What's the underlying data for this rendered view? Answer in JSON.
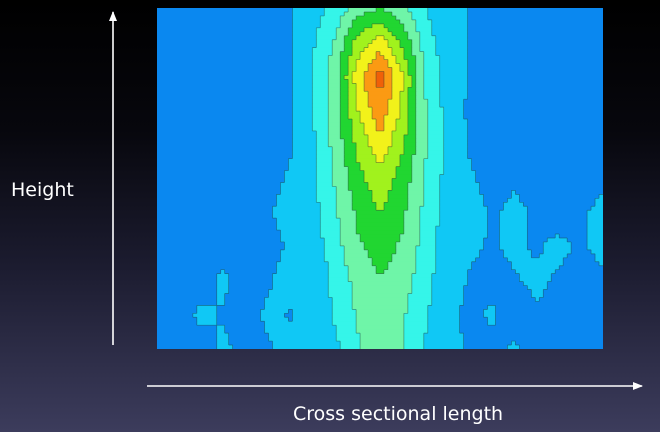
{
  "chart_data": {
    "type": "heatmap",
    "title": "",
    "xlabel": "Cross sectional length",
    "ylabel": "Height",
    "legend": "none",
    "grid": false,
    "contour_lines": true,
    "colormap": [
      "#0a88f0",
      "#10c8f5",
      "#35f5e9",
      "#6ff5a8",
      "#21d631",
      "#a1f21d",
      "#f2f21a",
      "#fb9a13",
      "#f06008"
    ],
    "x": [
      0,
      0.05,
      0.1,
      0.15,
      0.2,
      0.25,
      0.3,
      0.35,
      0.4,
      0.45,
      0.5,
      0.55,
      0.6,
      0.65,
      0.7,
      0.75,
      0.8,
      0.85,
      0.9,
      0.95,
      1
    ],
    "y": [
      0,
      0.1,
      0.2,
      0.3,
      0.4,
      0.5,
      0.6,
      0.7,
      0.8,
      0.9,
      1
    ],
    "z": [
      [
        1.8,
        1.8,
        1.7,
        1.9,
        1.7,
        1.8,
        2.0,
        1.9,
        2.5,
        3.4,
        4.0,
        3.5,
        2.6,
        2.0,
        1.8,
        1.7,
        1.9,
        1.7,
        1.5,
        1.5,
        1.5
      ],
      [
        1.7,
        1.7,
        1.9,
        1.8,
        1.7,
        1.9,
        1.8,
        2.1,
        2.8,
        3.6,
        4.1,
        3.6,
        2.8,
        2.0,
        1.7,
        1.9,
        1.6,
        1.8,
        1.7,
        1.6,
        1.6
      ],
      [
        1.5,
        1.6,
        1.7,
        1.9,
        1.6,
        1.8,
        2.0,
        2.0,
        2.9,
        3.8,
        4.3,
        3.9,
        3.0,
        2.1,
        1.8,
        1.7,
        1.8,
        1.9,
        1.8,
        1.7,
        1.8
      ],
      [
        1.6,
        1.6,
        1.8,
        1.7,
        1.6,
        1.7,
        1.9,
        2.2,
        3.2,
        4.2,
        4.7,
        4.2,
        3.2,
        2.2,
        1.9,
        1.8,
        1.9,
        1.8,
        1.9,
        1.8,
        1.9
      ],
      [
        1.6,
        1.7,
        1.8,
        1.8,
        1.7,
        1.8,
        2.0,
        2.4,
        3.4,
        4.5,
        5.2,
        4.5,
        3.3,
        2.3,
        2.0,
        1.8,
        1.9,
        1.8,
        1.7,
        1.8,
        1.9
      ],
      [
        1.5,
        1.5,
        1.7,
        1.6,
        1.5,
        1.7,
        1.9,
        2.5,
        3.6,
        4.9,
        5.7,
        4.8,
        3.5,
        2.4,
        1.9,
        1.7,
        1.8,
        1.7,
        1.5,
        1.7,
        1.8
      ],
      [
        1.3,
        1.4,
        1.4,
        1.5,
        1.4,
        1.6,
        1.8,
        2.6,
        3.8,
        5.4,
        6.6,
        5.3,
        3.6,
        2.5,
        1.8,
        1.6,
        1.6,
        1.5,
        1.4,
        1.5,
        1.6
      ],
      [
        1.3,
        1.2,
        1.6,
        1.3,
        1.4,
        1.5,
        1.7,
        2.6,
        3.9,
        6.0,
        7.4,
        5.8,
        3.6,
        2.4,
        1.7,
        1.5,
        1.6,
        1.3,
        1.4,
        1.4,
        1.5
      ],
      [
        1.2,
        1.3,
        1.4,
        1.4,
        1.5,
        1.5,
        1.8,
        2.7,
        4.0,
        6.5,
        8.0,
        6.1,
        3.5,
        2.3,
        1.8,
        1.6,
        1.5,
        1.4,
        1.5,
        1.5,
        1.4
      ],
      [
        1.4,
        1.3,
        1.5,
        1.5,
        1.6,
        1.6,
        1.8,
        2.6,
        3.6,
        5.5,
        6.4,
        5.0,
        3.1,
        2.2,
        1.8,
        1.7,
        1.6,
        1.5,
        1.6,
        1.6,
        1.5
      ],
      [
        1.5,
        1.5,
        1.6,
        1.6,
        1.6,
        1.7,
        1.8,
        2.3,
        3.0,
        3.9,
        4.3,
        3.8,
        2.7,
        2.1,
        1.8,
        1.7,
        1.6,
        1.6,
        1.6,
        1.6,
        1.6
      ]
    ]
  }
}
